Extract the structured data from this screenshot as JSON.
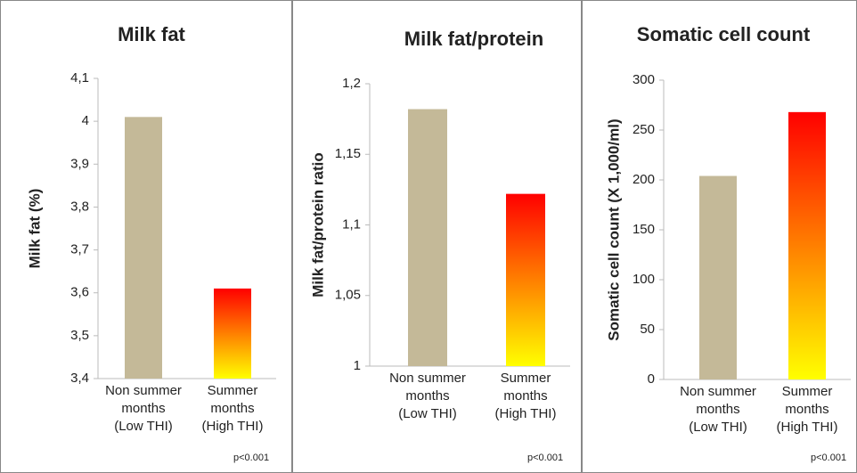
{
  "chart_data": [
    {
      "type": "bar",
      "title": "Milk fat",
      "y_label": "Milk fat (%)",
      "categories": [
        "Non summer\nmonths\n(Low THI)",
        "Summer\nmonths\n(High THI)"
      ],
      "values": [
        4.01,
        3.61
      ],
      "colors": [
        "#c4b998",
        [
          "#ff0000",
          "#ffff00"
        ]
      ],
      "ylim": [
        3.4,
        4.1
      ],
      "yticks": [
        {
          "value": 3.4,
          "label": "3,4"
        },
        {
          "value": 3.5,
          "label": "3,5"
        },
        {
          "value": 3.6,
          "label": "3,6"
        },
        {
          "value": 3.7,
          "label": "3,7"
        },
        {
          "value": 3.8,
          "label": "3,8"
        },
        {
          "value": 3.9,
          "label": "3,9"
        },
        4,
        {
          "value": 4.1,
          "label": "4,1"
        }
      ],
      "grid": false,
      "annotation": "p<0.001"
    },
    {
      "type": "bar",
      "title": "Milk fat/protein",
      "y_label": "Milk fat/protein ratio",
      "categories": [
        "Non summer\nmonths\n(Low THI)",
        "Summer\nmonths\n(High THI)"
      ],
      "values": [
        1.182,
        1.122
      ],
      "colors": [
        "#c4b998",
        [
          "#ff0000",
          "#ffff00"
        ]
      ],
      "ylim": [
        1,
        1.2
      ],
      "yticks": [
        1,
        {
          "value": 1.05,
          "label": "1,05"
        },
        {
          "value": 1.1,
          "label": "1,1"
        },
        {
          "value": 1.15,
          "label": "1,15"
        },
        {
          "value": 1.2,
          "label": "1,2"
        }
      ],
      "grid": false,
      "annotation": "p<0.001"
    },
    {
      "type": "bar",
      "title": "Somatic cell count",
      "y_label": "Somatic cell count (X 1,000/ml)",
      "categories": [
        "Non summer\nmonths\n(Low THI)",
        "Summer\nmonths\n(High THI)"
      ],
      "values": [
        204,
        268
      ],
      "colors": [
        "#c4b998",
        [
          "#ff0000",
          "#ffff00"
        ]
      ],
      "ylim": [
        0,
        300
      ],
      "yticks": [
        0,
        50,
        100,
        150,
        200,
        250,
        300
      ],
      "grid": false,
      "annotation": "p<0.001"
    }
  ]
}
